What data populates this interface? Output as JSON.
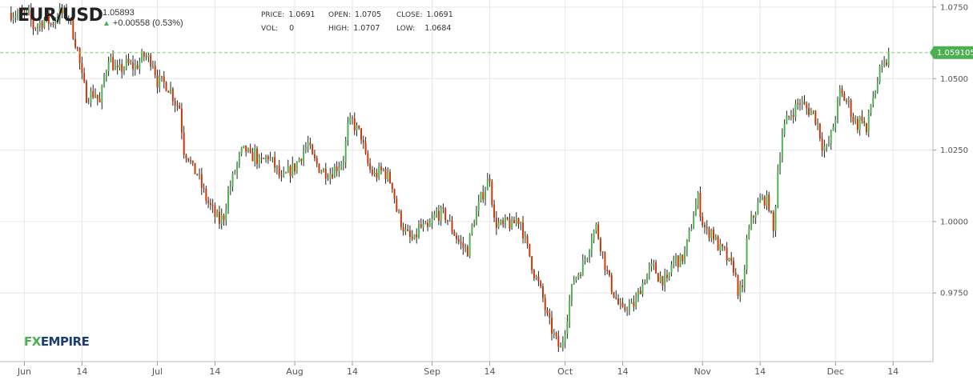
{
  "header": {
    "symbol": "EUR/USD",
    "last": "1.05893",
    "change": "+0.00558 (0.53%)",
    "price_label": "PRICE:",
    "price": "1.0691",
    "open_label": "OPEN:",
    "open": "1.0705",
    "close_label": "CLOSE:",
    "close": "1.0691",
    "vol_label": "VOL:",
    "vol": "0",
    "high_label": "HIGH:",
    "high": "1.0707",
    "low_label": "LOW:",
    "low": "1.0684"
  },
  "logo": {
    "fx": "FX",
    "empire": "EMPIRE"
  },
  "colors": {
    "up": "#4caf50",
    "down": "#cc3300",
    "wick": "#222222",
    "grid": "#e6e6e6",
    "ref_line": "#7ed56f"
  },
  "chart_data": {
    "type": "candlestick",
    "current_price_label": "1.059105",
    "current_price": 1.059105,
    "ylim": [
      0.951,
      1.0775
    ],
    "y_ticks": [
      {
        "value": 0.975,
        "label": "0.9750"
      },
      {
        "value": 1.0,
        "label": "1.0000"
      },
      {
        "value": 1.025,
        "label": "1.0250"
      },
      {
        "value": 1.05,
        "label": "1.0500"
      },
      {
        "value": 1.075,
        "label": "1.0750"
      }
    ],
    "x_ticks": [
      {
        "day": 3,
        "label": "Jun"
      },
      {
        "day": 16,
        "label": "14"
      },
      {
        "day": 33,
        "label": "Jul"
      },
      {
        "day": 46,
        "label": "14"
      },
      {
        "day": 64,
        "label": "Aug"
      },
      {
        "day": 77,
        "label": "14"
      },
      {
        "day": 95,
        "label": "Sep"
      },
      {
        "day": 108,
        "label": "14"
      },
      {
        "day": 125,
        "label": "Oct"
      },
      {
        "day": 138,
        "label": "14"
      },
      {
        "day": 156,
        "label": "Nov"
      },
      {
        "day": 169,
        "label": "14"
      },
      {
        "day": 186,
        "label": "Dec"
      },
      {
        "day": 199,
        "label": "14"
      }
    ],
    "x_domain": [
      -2.5,
      208
    ],
    "closes": [
      [
        0,
        1.073
      ],
      [
        4,
        1.072
      ],
      [
        5,
        1.068
      ],
      [
        8,
        1.071
      ],
      [
        9,
        1.069
      ],
      [
        11,
        1.073
      ],
      [
        13,
        1.072
      ],
      [
        15,
        1.06
      ],
      [
        16,
        1.05
      ],
      [
        17,
        1.044
      ],
      [
        19,
        1.045
      ],
      [
        20,
        1.041
      ],
      [
        21,
        1.05
      ],
      [
        22,
        1.058
      ],
      [
        24,
        1.052
      ],
      [
        26,
        1.055
      ],
      [
        28,
        1.054
      ],
      [
        30,
        1.058
      ],
      [
        32,
        1.056
      ],
      [
        33,
        1.049
      ],
      [
        35,
        1.048
      ],
      [
        36,
        1.046
      ],
      [
        37,
        1.042
      ],
      [
        38,
        1.04
      ],
      [
        39,
        1.025
      ],
      [
        40,
        1.023
      ],
      [
        41,
        1.018
      ],
      [
        42,
        1.017
      ],
      [
        43,
        1.012
      ],
      [
        44,
        1.008
      ],
      [
        45,
        1.005
      ],
      [
        46,
        1.002
      ],
      [
        47,
        1.0
      ],
      [
        48,
        1.002
      ],
      [
        49,
        1.01
      ],
      [
        50,
        1.015
      ],
      [
        51,
        1.02
      ],
      [
        52,
        1.024
      ],
      [
        53,
        1.025
      ],
      [
        54,
        1.022
      ],
      [
        55,
        1.024
      ],
      [
        56,
        1.02
      ],
      [
        58,
        1.023
      ],
      [
        60,
        1.018
      ],
      [
        61,
        1.014
      ],
      [
        62,
        1.016
      ],
      [
        63,
        1.018
      ],
      [
        64,
        1.019
      ],
      [
        65,
        1.022
      ],
      [
        66,
        1.025
      ],
      [
        67,
        1.027
      ],
      [
        68,
        1.022
      ],
      [
        70,
        1.018
      ],
      [
        72,
        1.017
      ],
      [
        74,
        1.02
      ],
      [
        75,
        1.022
      ],
      [
        76,
        1.033
      ],
      [
        77,
        1.035
      ],
      [
        78,
        1.032
      ],
      [
        79,
        1.03
      ],
      [
        80,
        1.022
      ],
      [
        81,
        1.018
      ],
      [
        82,
        1.016
      ],
      [
        84,
        1.018
      ],
      [
        86,
        1.013
      ],
      [
        87,
        1.004
      ],
      [
        88,
        1.0
      ],
      [
        89,
        0.996
      ],
      [
        90,
        0.994
      ],
      [
        91,
        0.993
      ],
      [
        92,
        0.998
      ],
      [
        94,
        0.997
      ],
      [
        96,
        1.003
      ],
      [
        98,
        1.002
      ],
      [
        100,
        0.996
      ],
      [
        101,
        0.993
      ],
      [
        102,
        0.991
      ],
      [
        103,
        0.99
      ],
      [
        104,
        0.998
      ],
      [
        105,
        1.003
      ],
      [
        106,
        1.008
      ],
      [
        107,
        1.012
      ],
      [
        108,
        1.016
      ],
      [
        109,
        1.0
      ],
      [
        110,
        0.999
      ],
      [
        111,
        0.998
      ],
      [
        112,
        1.0
      ],
      [
        113,
        0.998
      ],
      [
        114,
        1.001
      ],
      [
        115,
        1.0
      ],
      [
        116,
        0.993
      ],
      [
        117,
        0.988
      ],
      [
        118,
        0.982
      ],
      [
        119,
        0.978
      ],
      [
        120,
        0.973
      ],
      [
        121,
        0.966
      ],
      [
        122,
        0.962
      ],
      [
        123,
        0.958
      ],
      [
        124,
        0.955
      ],
      [
        125,
        0.963
      ],
      [
        126,
        0.972
      ],
      [
        127,
        0.98
      ],
      [
        128,
        0.982
      ],
      [
        129,
        0.985
      ],
      [
        130,
        0.989
      ],
      [
        131,
        0.995
      ],
      [
        132,
        0.998
      ],
      [
        133,
        0.992
      ],
      [
        134,
        0.985
      ],
      [
        135,
        0.979
      ],
      [
        136,
        0.975
      ],
      [
        137,
        0.971
      ],
      [
        138,
        0.968
      ],
      [
        139,
        0.971
      ],
      [
        140,
        0.97
      ],
      [
        141,
        0.972
      ],
      [
        142,
        0.977
      ],
      [
        143,
        0.98
      ],
      [
        144,
        0.983
      ],
      [
        145,
        0.984
      ],
      [
        146,
        0.981
      ],
      [
        147,
        0.98
      ],
      [
        148,
        0.978
      ],
      [
        149,
        0.985
      ],
      [
        150,
        0.987
      ],
      [
        151,
        0.986
      ],
      [
        152,
        0.989
      ],
      [
        153,
        0.995
      ],
      [
        154,
        1.003
      ],
      [
        155,
        1.008
      ],
      [
        156,
        1.0
      ],
      [
        157,
        0.996
      ],
      [
        158,
        0.997
      ],
      [
        159,
        0.993
      ],
      [
        160,
        0.99
      ],
      [
        161,
        0.989
      ],
      [
        162,
        0.985
      ],
      [
        163,
        0.984
      ],
      [
        164,
        0.976
      ],
      [
        165,
        0.975
      ],
      [
        166,
        0.993
      ],
      [
        167,
        1.0
      ],
      [
        168,
        1.004
      ],
      [
        169,
        1.007
      ],
      [
        170,
        1.008
      ],
      [
        171,
        1.006
      ],
      [
        172,
        0.996
      ],
      [
        173,
        1.018
      ],
      [
        174,
        1.031
      ],
      [
        175,
        1.035
      ],
      [
        176,
        1.038
      ],
      [
        177,
        1.04
      ],
      [
        178,
        1.042
      ],
      [
        179,
        1.04
      ],
      [
        180,
        1.039
      ],
      [
        181,
        1.038
      ],
      [
        182,
        1.034
      ],
      [
        183,
        1.027
      ],
      [
        184,
        1.025
      ],
      [
        185,
        1.03
      ],
      [
        186,
        1.037
      ],
      [
        187,
        1.045
      ],
      [
        188,
        1.043
      ],
      [
        189,
        1.041
      ],
      [
        190,
        1.036
      ],
      [
        191,
        1.034
      ],
      [
        192,
        1.037
      ],
      [
        193,
        1.031
      ],
      [
        194,
        1.041
      ],
      [
        195,
        1.046
      ],
      [
        196,
        1.052
      ],
      [
        197,
        1.054
      ],
      [
        198,
        1.058
      ]
    ]
  }
}
